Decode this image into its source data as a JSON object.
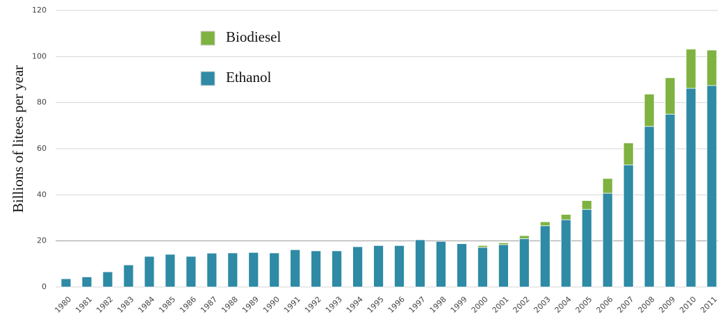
{
  "chart_data": {
    "type": "stacked_bar",
    "y_label": "Billions of litees per year",
    "categories": [
      "1980",
      "1981",
      "1982",
      "1983",
      "1984",
      "1985",
      "1986",
      "1987",
      "1988",
      "1989",
      "1990",
      "1991",
      "1992",
      "1993",
      "1994",
      "1995",
      "1996",
      "1997",
      "1998",
      "1999",
      "2000",
      "2001",
      "2002",
      "2003",
      "2004",
      "2005",
      "2006",
      "2007",
      "2008",
      "2009",
      "2010",
      "2011"
    ],
    "series": [
      {
        "name": "Ethanol",
        "color": "#2e8aa5",
        "values": [
          3.6,
          4.4,
          6.6,
          9.6,
          13.3,
          14.2,
          13.3,
          14.7,
          14.8,
          15,
          14.8,
          16.2,
          15.7,
          15.7,
          17.5,
          18,
          18,
          20.5,
          19.8,
          18.8,
          17.2,
          18.4,
          21,
          26.6,
          29.2,
          33.7,
          40.7,
          53,
          69.7,
          75,
          86.2,
          87.4
        ]
      },
      {
        "name": "Biodiesel",
        "color": "#7fb241",
        "values": [
          0,
          0,
          0,
          0,
          0,
          0,
          0,
          0,
          0,
          0,
          0,
          0,
          0,
          0,
          0,
          0,
          0,
          0,
          0,
          0,
          0.8,
          0.8,
          1.3,
          1.7,
          2.3,
          3.8,
          6.4,
          9.5,
          14,
          15.8,
          17,
          15.4
        ]
      }
    ],
    "ylim": [
      0,
      120
    ],
    "yticks": [
      0,
      20,
      40,
      60,
      80,
      100,
      120
    ],
    "grid": true
  }
}
